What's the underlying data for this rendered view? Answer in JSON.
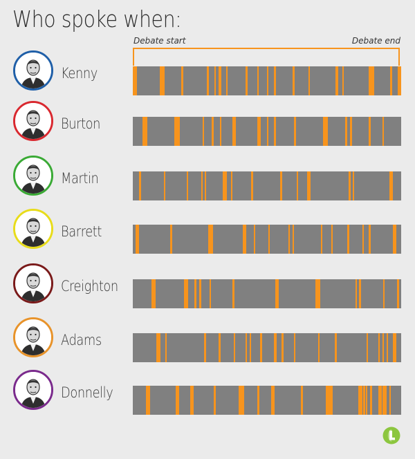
{
  "title": "Who spoke when:",
  "chart_data": {
    "type": "timeline",
    "xlabel_start": "Debate start",
    "xlabel_end": "Debate end",
    "xlim": [
      0,
      100
    ],
    "series": [
      {
        "name": "Kenny",
        "color": "#1f5fa8",
        "intervals": [
          [
            0,
            1.5
          ],
          [
            10,
            11.8
          ],
          [
            18,
            18.7
          ],
          [
            27.5,
            28.3
          ],
          [
            30.3,
            30.9
          ],
          [
            32,
            33
          ],
          [
            34.8,
            35.4
          ],
          [
            42,
            42.8
          ],
          [
            46.3,
            47
          ],
          [
            50,
            50.6
          ],
          [
            52.5,
            53.3
          ],
          [
            59.5,
            60.2
          ],
          [
            65.5,
            66
          ],
          [
            75.5,
            76.5
          ],
          [
            78,
            78.6
          ],
          [
            88,
            90
          ],
          [
            96,
            96.6
          ],
          [
            98.8,
            100
          ]
        ]
      },
      {
        "name": "Burton",
        "color": "#d9282f",
        "intervals": [
          [
            3.5,
            5.3
          ],
          [
            15.5,
            17.5
          ],
          [
            26,
            26.6
          ],
          [
            29.5,
            30.2
          ],
          [
            32.5,
            33.1
          ],
          [
            37,
            38.5
          ],
          [
            46.5,
            47.8
          ],
          [
            50,
            50.6
          ],
          [
            52.5,
            53.3
          ],
          [
            60,
            60.7
          ],
          [
            71,
            72.7
          ],
          [
            79,
            80
          ],
          [
            81,
            81.8
          ],
          [
            88,
            88.6
          ],
          [
            93,
            93.6
          ]
        ]
      },
      {
        "name": "Martin",
        "color": "#3aaa35",
        "intervals": [
          [
            2.3,
            3
          ],
          [
            11.5,
            12.2
          ],
          [
            20,
            20.6
          ],
          [
            25.5,
            26.1
          ],
          [
            26.8,
            27.4
          ],
          [
            33.5,
            35
          ],
          [
            36.5,
            37.1
          ],
          [
            44,
            44.8
          ],
          [
            55,
            55.6
          ],
          [
            61,
            61.6
          ],
          [
            65,
            66.3
          ],
          [
            80.5,
            81.1
          ],
          [
            82,
            82.6
          ],
          [
            95.5,
            97
          ]
        ]
      },
      {
        "name": "Barrett",
        "color": "#e8dc1a",
        "intervals": [
          [
            1,
            2.3
          ],
          [
            14,
            14.7
          ],
          [
            28,
            29.8
          ],
          [
            41,
            42.2
          ],
          [
            45,
            45.6
          ],
          [
            50.5,
            51.1
          ],
          [
            58,
            58.6
          ],
          [
            59.5,
            60.1
          ],
          [
            70,
            70.6
          ],
          [
            74,
            74.6
          ],
          [
            80,
            80.7
          ],
          [
            85.5,
            86.2
          ],
          [
            88,
            88.6
          ],
          [
            97,
            98.2
          ]
        ]
      },
      {
        "name": "Creighton",
        "color": "#7a1a1a",
        "intervals": [
          [
            7,
            8.5
          ],
          [
            19,
            20.5
          ],
          [
            23,
            23.6
          ],
          [
            24.8,
            25.4
          ],
          [
            28.5,
            29.1
          ],
          [
            37,
            37.8
          ],
          [
            53,
            54.3
          ],
          [
            68,
            69.8
          ],
          [
            83,
            83.6
          ],
          [
            84.3,
            85
          ],
          [
            93.2,
            93.8
          ],
          [
            98.5,
            99.2
          ]
        ]
      },
      {
        "name": "Adams",
        "color": "#e8932a",
        "intervals": [
          [
            8.8,
            10.3
          ],
          [
            12,
            12.6
          ],
          [
            26.5,
            27.2
          ],
          [
            32,
            32.8
          ],
          [
            37.5,
            38.2
          ],
          [
            42,
            42.6
          ],
          [
            43.5,
            44.1
          ],
          [
            47.5,
            48.1
          ],
          [
            52.5,
            53.5
          ],
          [
            55.5,
            56.1
          ],
          [
            60,
            60.6
          ],
          [
            69,
            69.6
          ],
          [
            75.2,
            76
          ],
          [
            87,
            87.6
          ],
          [
            91.5,
            92.1
          ],
          [
            93,
            93.6
          ],
          [
            94.5,
            95.1
          ],
          [
            97,
            98.2
          ]
        ]
      },
      {
        "name": "Donnelly",
        "color": "#7a2a8c",
        "intervals": [
          [
            5,
            6.5
          ],
          [
            16,
            17.2
          ],
          [
            21.5,
            22.8
          ],
          [
            30.2,
            31
          ],
          [
            39.5,
            41.5
          ],
          [
            46.5,
            47.2
          ],
          [
            51.5,
            52.8
          ],
          [
            62.5,
            63.5
          ],
          [
            72,
            74.5
          ],
          [
            84,
            85.5
          ],
          [
            85.8,
            86.5
          ],
          [
            86.8,
            87.5
          ],
          [
            88.5,
            89.2
          ],
          [
            91.5,
            92.7
          ],
          [
            93,
            94.5
          ],
          [
            95.5,
            96.2
          ]
        ]
      }
    ]
  }
}
